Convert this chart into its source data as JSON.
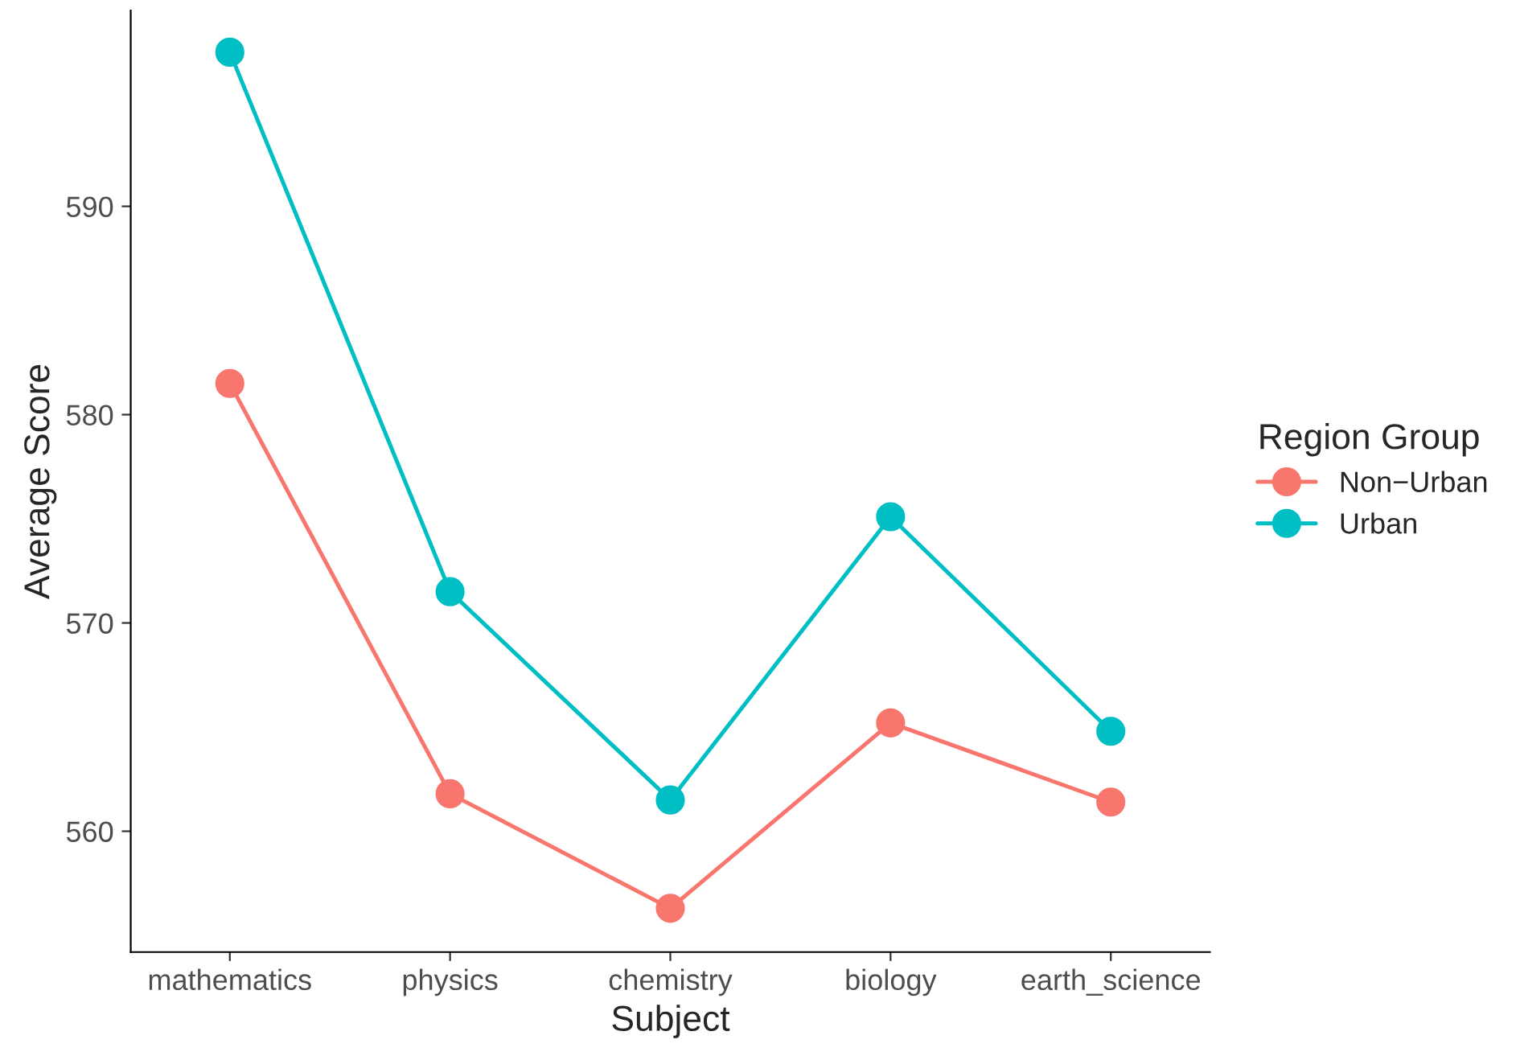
{
  "chart_data": {
    "type": "line",
    "xlabel": "Subject",
    "ylabel": "Average Score",
    "legend_title": "Region Group",
    "categories": [
      "mathematics",
      "physics",
      "chemistry",
      "biology",
      "earth_science"
    ],
    "series": [
      {
        "name": "Non−Urban",
        "color": "#f8766d",
        "values": [
          581.5,
          561.8,
          556.3,
          565.2,
          561.4
        ]
      },
      {
        "name": "Urban",
        "color": "#00bfc4",
        "values": [
          597.4,
          571.5,
          561.5,
          575.1,
          564.8
        ]
      }
    ],
    "ylim": [
      554.2,
      599.4
    ],
    "yticks": [
      560,
      570,
      580,
      590
    ],
    "grid": false,
    "legend": "right",
    "marker": "circle",
    "line_style": "solid"
  }
}
